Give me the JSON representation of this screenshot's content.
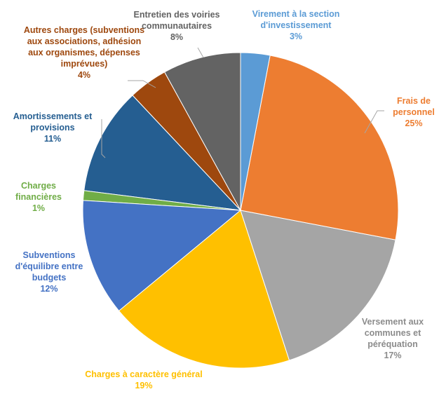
{
  "chart_data": {
    "type": "pie",
    "categories": [
      "Virement à la section d'investissement",
      "Frais de personnel",
      "Versement aux communes et péréquation",
      "Charges à caractère général",
      "Subventions d'équilibre entre budgets",
      "Charges financières",
      "Amortissements et provisions",
      "Autres charges (subventions aux associations, adhésion aux organismes, dépenses imprévues)",
      "Entretien des voiries communautaires"
    ],
    "values": [
      3,
      25,
      17,
      19,
      12,
      1,
      11,
      4,
      8
    ],
    "value_labels": [
      "3%",
      "25%",
      "17%",
      "19%",
      "12%",
      "1%",
      "11%",
      "4%",
      "8%"
    ],
    "colors": [
      "#5b9bd5",
      "#ed7d31",
      "#a5a5a5",
      "#ffc000",
      "#4472c4",
      "#70ad47",
      "#255e91",
      "#9e480e",
      "#636363"
    ]
  }
}
